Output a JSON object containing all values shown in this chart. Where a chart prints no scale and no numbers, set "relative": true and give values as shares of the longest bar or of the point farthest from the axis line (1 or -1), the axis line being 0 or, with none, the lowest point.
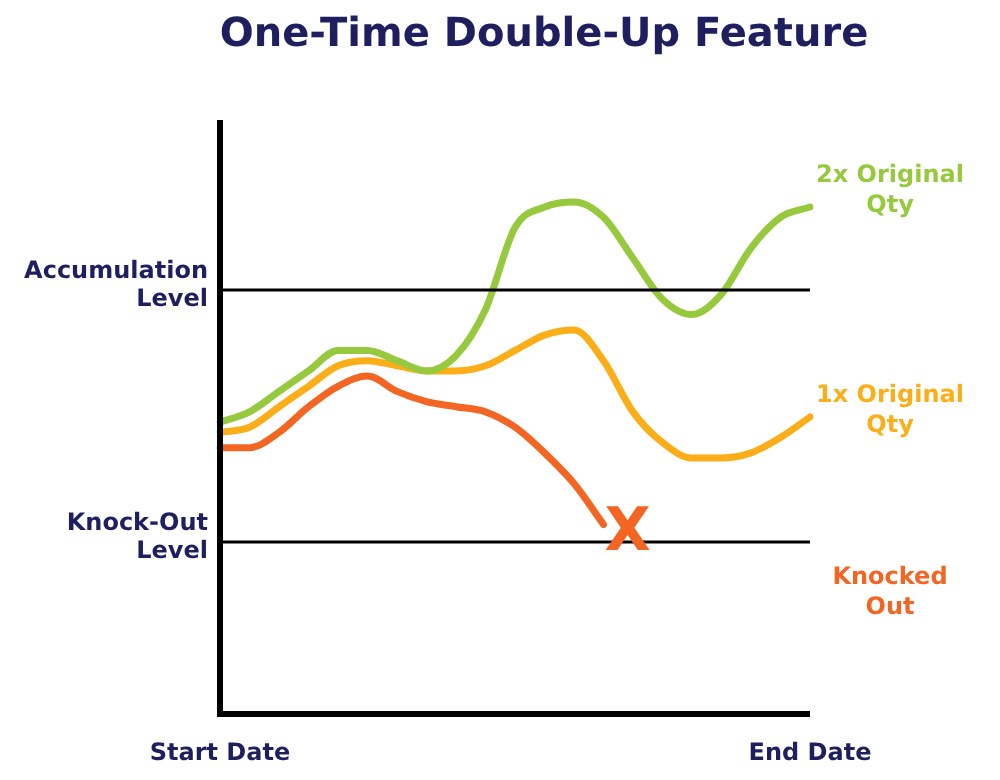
{
  "chart_data": {
    "type": "line",
    "title": "One-Time Double-Up Feature",
    "relative": true,
    "marker": "none",
    "categories": [
      "Start Date",
      null,
      null,
      null,
      null,
      null,
      null,
      null,
      null,
      null,
      null,
      null,
      null,
      null,
      null,
      null,
      null,
      null,
      null,
      null,
      "End Date"
    ],
    "series": [
      {
        "name": "2x Original Qty",
        "color": "#96c93d",
        "values": [
          0.57,
          0.59,
          0.63,
          0.67,
          0.71,
          0.71,
          0.69,
          0.67,
          0.7,
          0.79,
          0.95,
          0.99,
          1,
          0.97,
          0.89,
          0.81,
          0.78,
          0.82,
          0.91,
          0.97,
          0.99
        ]
      },
      {
        "name": "1x Original Qty",
        "color": "#fbae17",
        "values": [
          0.55,
          0.56,
          0.6,
          0.64,
          0.68,
          0.69,
          0.68,
          0.67,
          0.67,
          0.68,
          0.71,
          0.74,
          0.75,
          0.69,
          0.59,
          0.53,
          0.5,
          0.5,
          0.51,
          0.54,
          0.58
        ]
      },
      {
        "name": "Knocked Out",
        "color": "#f26522",
        "values": [
          0.52,
          0.52,
          0.55,
          0.6,
          0.64,
          0.66,
          0.63,
          0.61,
          0.6,
          0.59,
          0.56,
          0.51,
          0.45,
          0.37,
          null,
          null,
          null,
          null,
          null,
          null,
          null
        ]
      }
    ],
    "ref_lines": [
      {
        "axis": "y",
        "value": 0.828,
        "label": "Accumulation Level",
        "color": "#000000"
      },
      {
        "axis": "y",
        "value": 0.336,
        "label": "Knock-Out Level",
        "color": "#000000"
      }
    ],
    "annotations": [
      {
        "text": "X",
        "y": 0.35
      }
    ]
  }
}
